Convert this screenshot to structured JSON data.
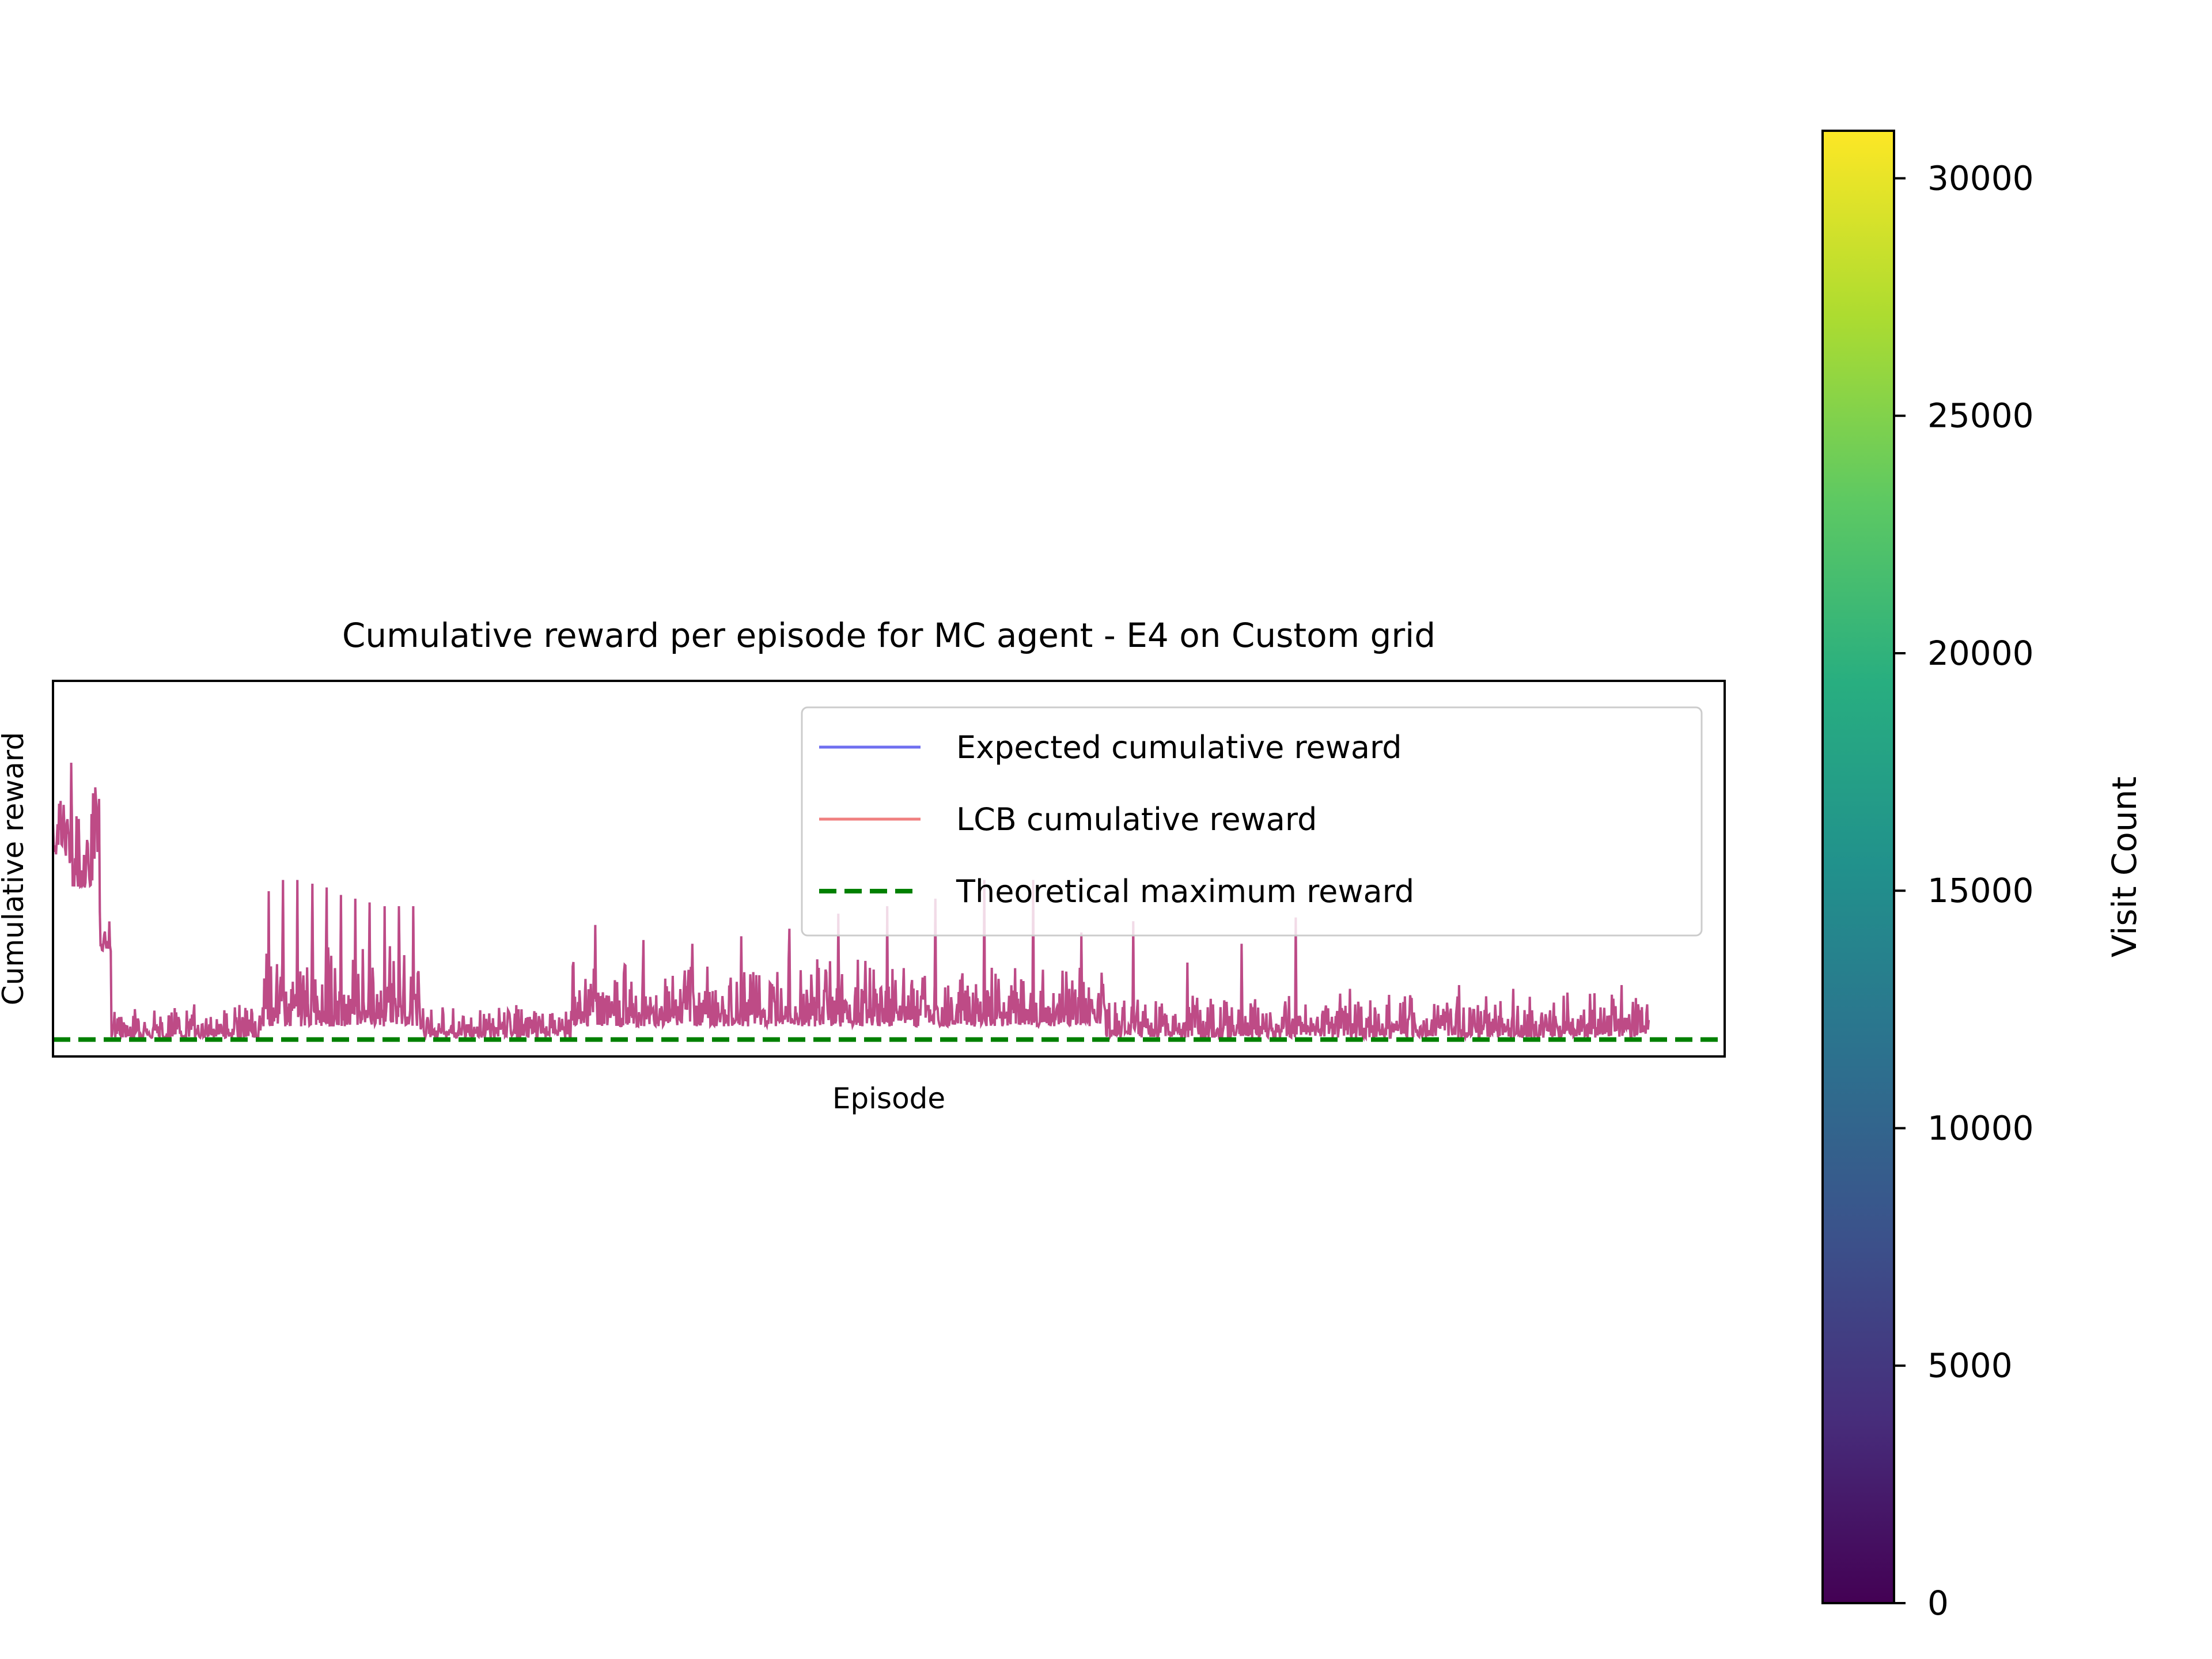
{
  "chart_data": [
    {
      "type": "line",
      "title": "Cumulative reward per episode for MC agent - E4 on Custom grid",
      "xlabel": "Episode",
      "ylabel": "Cumulative reward",
      "xticks_visible": false,
      "yticks_visible": false,
      "grid": false,
      "legend_position": "top-right",
      "legend": [
        "Expected cumulative reward",
        "LCB cumulative reward",
        "Theoretical maximum reward"
      ],
      "xlim": [
        0,
        1000
      ],
      "ylim": [
        0,
        100
      ],
      "theoretical_max": 4.5,
      "series": [
        {
          "name": "Expected cumulative reward",
          "color": "#6f6ff0",
          "style": "solid",
          "segments": [
            {
              "x0": 0,
              "x1": 10,
              "low": 52,
              "high": 88
            },
            {
              "x0": 10,
              "x1": 28,
              "low": 45,
              "high": 82
            },
            {
              "x0": 28,
              "x1": 35,
              "low": 28,
              "high": 44
            },
            {
              "x0": 35,
              "x1": 125,
              "low": 5,
              "high": 14
            },
            {
              "x0": 125,
              "x1": 220,
              "low": 8,
              "high": 30,
              "spikes": [
                44,
                47,
                47,
                46,
                45,
                43,
                42,
                41,
                40,
                40,
                40
              ]
            },
            {
              "x0": 220,
              "x1": 310,
              "low": 5,
              "high": 14
            },
            {
              "x0": 310,
              "x1": 630,
              "low": 8,
              "high": 26,
              "spikes": [
                35,
                31,
                30,
                32,
                34,
                38,
                40,
                42,
                47,
                47,
                33
              ]
            },
            {
              "x0": 630,
              "x1": 955,
              "low": 5,
              "high": 17,
              "spikes": [
                36,
                25,
                30,
                37,
                18,
                16,
                19,
                18,
                17,
                19
              ]
            }
          ]
        },
        {
          "name": "LCB cumulative reward",
          "color": "#c0407a",
          "style": "solid"
        },
        {
          "name": "Theoretical maximum reward",
          "color": "#008000",
          "style": "dashed",
          "values": [
            4.5,
            4.5
          ]
        }
      ]
    },
    {
      "type": "heatmap",
      "colorbar_label": "Visit Count",
      "colormap": "viridis",
      "range": [
        0,
        31000
      ],
      "ticks": [
        "0",
        "5000",
        "10000",
        "15000",
        "20000",
        "25000",
        "30000"
      ],
      "tick_values": [
        0,
        5000,
        10000,
        15000,
        20000,
        25000,
        30000
      ]
    }
  ]
}
